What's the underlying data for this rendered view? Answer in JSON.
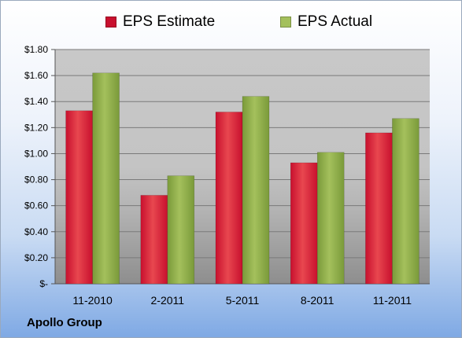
{
  "colors": {
    "estimate": "#c8102e",
    "estimate_light": "#e8474f",
    "actual": "#7a9a3a",
    "actual_light": "#a4c05c",
    "gridline": "#7a7a7a"
  },
  "footer": {
    "company": "Apollo Group"
  },
  "chart_data": {
    "type": "bar",
    "categories": [
      "11-2010",
      "2-2011",
      "5-2011",
      "8-2011",
      "11-2011"
    ],
    "series": [
      {
        "name": "EPS Estimate",
        "values": [
          1.33,
          0.68,
          1.32,
          0.93,
          1.16
        ]
      },
      {
        "name": "EPS Actual",
        "values": [
          1.62,
          0.83,
          1.44,
          1.01,
          1.27
        ]
      }
    ],
    "ylim": [
      0,
      1.8
    ],
    "yticks": [
      0,
      0.2,
      0.4,
      0.6,
      0.8,
      1.0,
      1.2,
      1.4,
      1.6,
      1.8
    ],
    "ytick_labels": [
      "$-",
      "$0.20",
      "$0.40",
      "$0.60",
      "$0.80",
      "$1.00",
      "$1.20",
      "$1.40",
      "$1.60",
      "$1.80"
    ],
    "legend_position": "top",
    "grid": true
  }
}
